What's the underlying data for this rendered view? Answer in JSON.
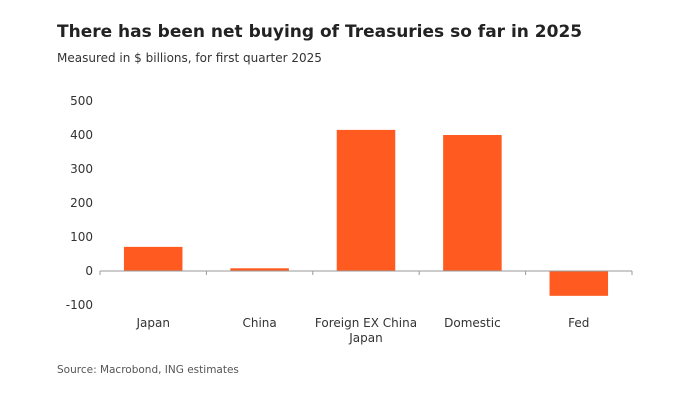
{
  "chart_data": {
    "type": "bar",
    "title": "There has been net buying of Treasuries so far in 2025",
    "subtitle": "Measured in $ billions, for first quarter 2025",
    "source": "Source: Macrobond, ING estimates",
    "categories": [
      [
        "Japan"
      ],
      [
        "China"
      ],
      [
        "Foreign EX China",
        "Japan"
      ],
      [
        "Domestic"
      ],
      [
        "Fed"
      ]
    ],
    "values": [
      71,
      8,
      415,
      400,
      -73
    ],
    "yticks": [
      "500",
      "400",
      "300",
      "200",
      "100",
      "0",
      "-100"
    ],
    "ylim": [
      -100,
      500
    ],
    "grid": false,
    "bar_color": "#ff5a1f"
  }
}
